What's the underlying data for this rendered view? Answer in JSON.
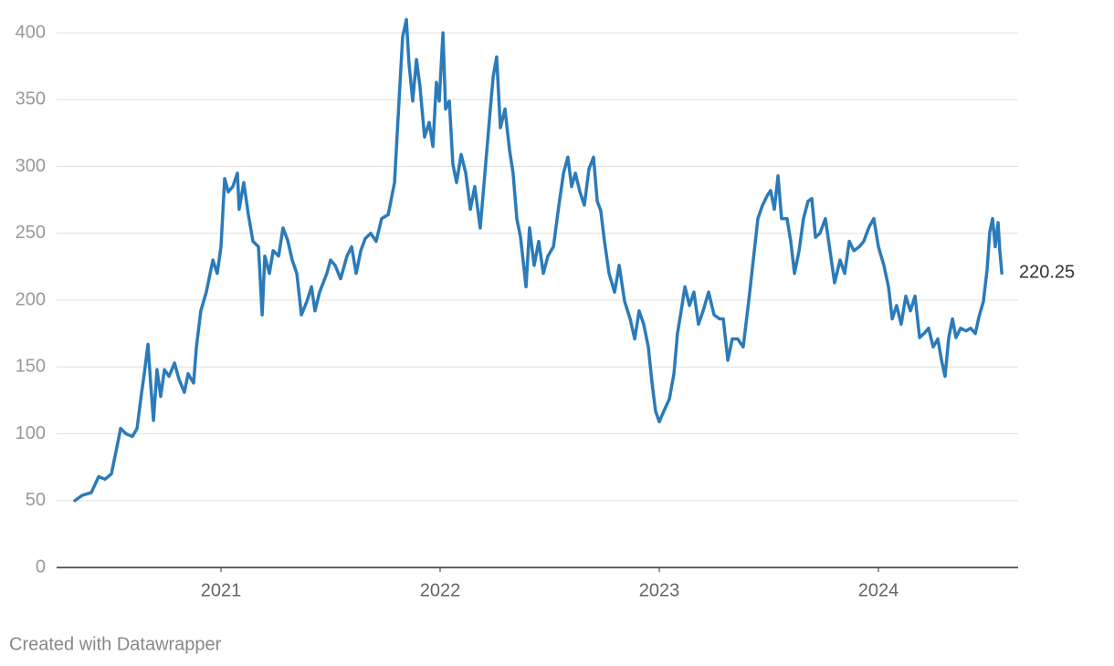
{
  "chart_data": {
    "type": "line",
    "x": [
      2020.333,
      2020.367,
      2020.408,
      2020.442,
      2020.471,
      2020.5,
      2020.525,
      2020.542,
      2020.567,
      2020.596,
      2020.617,
      2020.638,
      2020.65,
      2020.667,
      2020.679,
      2020.692,
      2020.708,
      2020.725,
      2020.742,
      2020.763,
      2020.788,
      2020.808,
      2020.833,
      2020.85,
      2020.875,
      2020.888,
      2020.908,
      2020.933,
      2020.963,
      2020.983,
      2021,
      2021.017,
      2021.033,
      2021.054,
      2021.075,
      2021.083,
      2021.104,
      2021.125,
      2021.146,
      2021.171,
      2021.188,
      2021.2,
      2021.221,
      2021.238,
      2021.263,
      2021.283,
      2021.304,
      2021.325,
      2021.346,
      2021.367,
      2021.392,
      2021.413,
      2021.429,
      2021.45,
      2021.483,
      2021.5,
      2021.521,
      2021.546,
      2021.575,
      2021.596,
      2021.617,
      2021.638,
      2021.658,
      2021.683,
      2021.708,
      2021.733,
      2021.763,
      2021.792,
      2021.808,
      2021.829,
      2021.846,
      2021.858,
      2021.875,
      2021.892,
      2021.908,
      2021.929,
      2021.95,
      2021.967,
      2021.983,
      2021.996,
      2022.013,
      2022.025,
      2022.042,
      2022.058,
      2022.075,
      2022.096,
      2022.117,
      2022.138,
      2022.158,
      2022.183,
      2022.208,
      2022.229,
      2022.242,
      2022.258,
      2022.275,
      2022.296,
      2022.317,
      2022.333,
      2022.35,
      2022.367,
      2022.392,
      2022.408,
      2022.429,
      2022.45,
      2022.471,
      2022.492,
      2022.517,
      2022.542,
      2022.563,
      2022.583,
      2022.6,
      2022.617,
      2022.638,
      2022.658,
      2022.679,
      2022.7,
      2022.717,
      2022.733,
      2022.75,
      2022.771,
      2022.796,
      2022.817,
      2022.842,
      2022.867,
      2022.888,
      2022.908,
      2022.929,
      2022.95,
      2022.967,
      2022.983,
      2023,
      2023.021,
      2023.046,
      2023.067,
      2023.083,
      2023.1,
      2023.117,
      2023.138,
      2023.158,
      2023.179,
      2023.2,
      2023.225,
      2023.25,
      2023.275,
      2023.292,
      2023.313,
      2023.333,
      2023.358,
      2023.383,
      2023.408,
      2023.429,
      2023.45,
      2023.471,
      2023.492,
      2023.508,
      2023.525,
      2023.542,
      2023.558,
      2023.583,
      2023.6,
      2023.617,
      2023.638,
      2023.658,
      2023.679,
      2023.696,
      2023.713,
      2023.733,
      2023.758,
      2023.779,
      2023.8,
      2023.825,
      2023.846,
      2023.867,
      2023.888,
      2023.913,
      2023.933,
      2023.958,
      2023.979,
      2024,
      2024.025,
      2024.046,
      2024.063,
      2024.083,
      2024.104,
      2024.125,
      2024.146,
      2024.167,
      2024.188,
      2024.208,
      2024.229,
      2024.25,
      2024.271,
      2024.288,
      2024.304,
      2024.321,
      2024.338,
      2024.354,
      2024.375,
      2024.4,
      2024.421,
      2024.442,
      2024.458,
      2024.479,
      2024.496,
      2024.508,
      2024.521,
      2024.533,
      2024.546,
      2024.554,
      2024.563
    ],
    "values": [
      50,
      54,
      56,
      68,
      66,
      70,
      90,
      104,
      100,
      98,
      104,
      131,
      145,
      167,
      138,
      110,
      148,
      128,
      148,
      143,
      153,
      141,
      131,
      145,
      138,
      165,
      192,
      206,
      230,
      220,
      240,
      291,
      281,
      285,
      295,
      268,
      288,
      264,
      244,
      240,
      189,
      233,
      220,
      237,
      233,
      254,
      245,
      230,
      220,
      189,
      199,
      210,
      192,
      206,
      220,
      230,
      226,
      216,
      233,
      240,
      220,
      237,
      246,
      250,
      244,
      261,
      264,
      288,
      336,
      397,
      410,
      377,
      349,
      380,
      360,
      322,
      333,
      315,
      363,
      349,
      400,
      343,
      349,
      302,
      288,
      309,
      295,
      268,
      285,
      254,
      302,
      343,
      367,
      382,
      329,
      343,
      312,
      295,
      261,
      247,
      210,
      254,
      226,
      244,
      220,
      233,
      240,
      271,
      295,
      307,
      285,
      295,
      281,
      271,
      298,
      307,
      274,
      267,
      244,
      220,
      206,
      226,
      199,
      186,
      171,
      192,
      182,
      165,
      138,
      117,
      109,
      117,
      126,
      145,
      175,
      192,
      210,
      196,
      206,
      182,
      192,
      206,
      189,
      186,
      186,
      155,
      171,
      171,
      165,
      199,
      230,
      261,
      271,
      278,
      282,
      268,
      293,
      261,
      261,
      244,
      220,
      237,
      261,
      274,
      276,
      247,
      250,
      261,
      237,
      213,
      230,
      220,
      244,
      237,
      240,
      244,
      255,
      261,
      240,
      226,
      210,
      186,
      196,
      182,
      203,
      192,
      203,
      172,
      175,
      179,
      165,
      171,
      155,
      143,
      172,
      186,
      172,
      179,
      177,
      179,
      175,
      187,
      199,
      223,
      251,
      261,
      240,
      258,
      237,
      220.25
    ],
    "color": "#2b7bba",
    "xlim": [
      2020.25,
      2024.6375
    ],
    "xticks": [
      2021,
      2022,
      2023,
      2024
    ],
    "ylim": [
      0,
      400
    ],
    "yticks": [
      0,
      50,
      100,
      150,
      200,
      250,
      300,
      350,
      400
    ],
    "grid": true,
    "credit": "Created with Datawrapper"
  }
}
